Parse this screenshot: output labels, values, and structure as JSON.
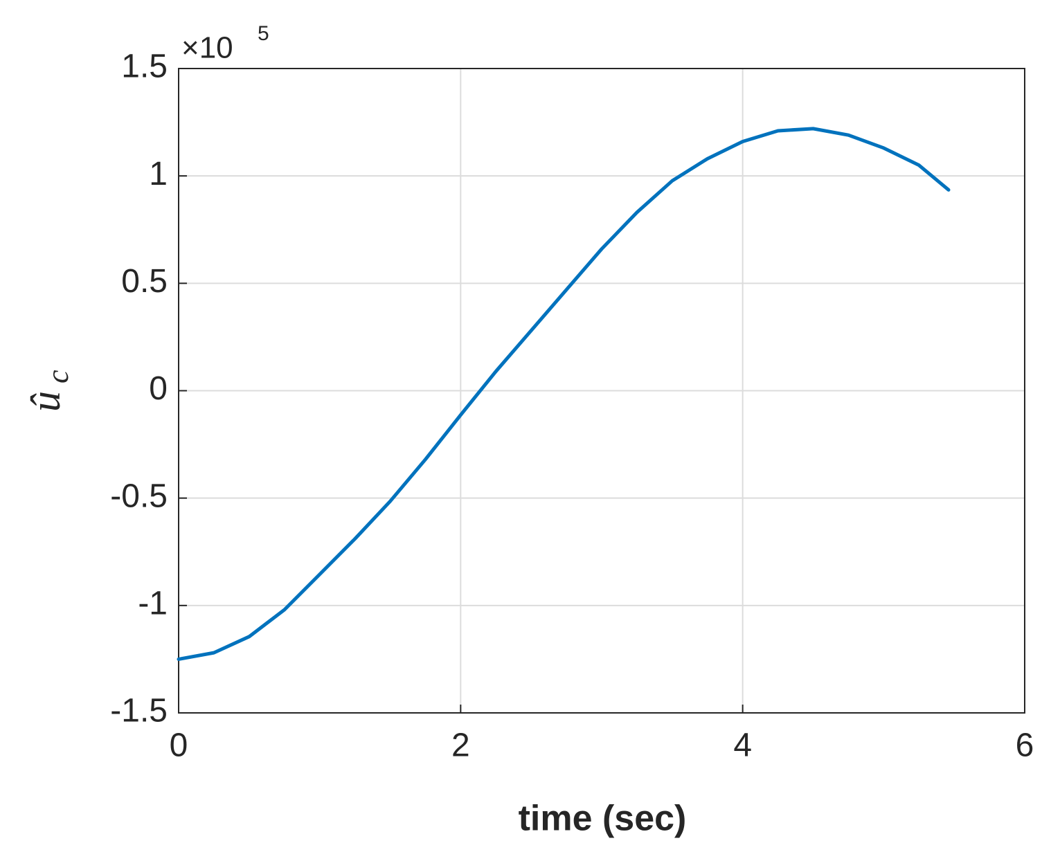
{
  "chart_data": {
    "type": "line",
    "xlabel": "time (sec)",
    "ylabel": "û",
    "ylabel_subscript": "c",
    "y_multiplier": "×10",
    "y_multiplier_exponent": "5",
    "x": [
      0,
      0.25,
      0.5,
      0.75,
      1,
      1.25,
      1.5,
      1.75,
      2,
      2.25,
      2.5,
      2.75,
      3,
      3.25,
      3.5,
      3.75,
      4,
      4.25,
      4.5,
      4.75,
      5,
      5.25,
      5.46
    ],
    "values": [
      -1.25,
      -1.22,
      -1.145,
      -1.02,
      -0.855,
      -0.69,
      -0.515,
      -0.32,
      -0.113,
      0.09,
      0.28,
      0.47,
      0.66,
      0.83,
      0.977,
      1.08,
      1.16,
      1.21,
      1.22,
      1.19,
      1.13,
      1.05,
      0.935
    ],
    "color": "#0072BD",
    "xlim": [
      0,
      6
    ],
    "xticks": [
      0,
      2,
      4,
      6
    ],
    "ylim": [
      -1.5,
      1.5
    ],
    "yticks": [
      -1.5,
      -1,
      -0.5,
      0,
      0.5,
      1,
      1.5
    ],
    "grid": true
  }
}
